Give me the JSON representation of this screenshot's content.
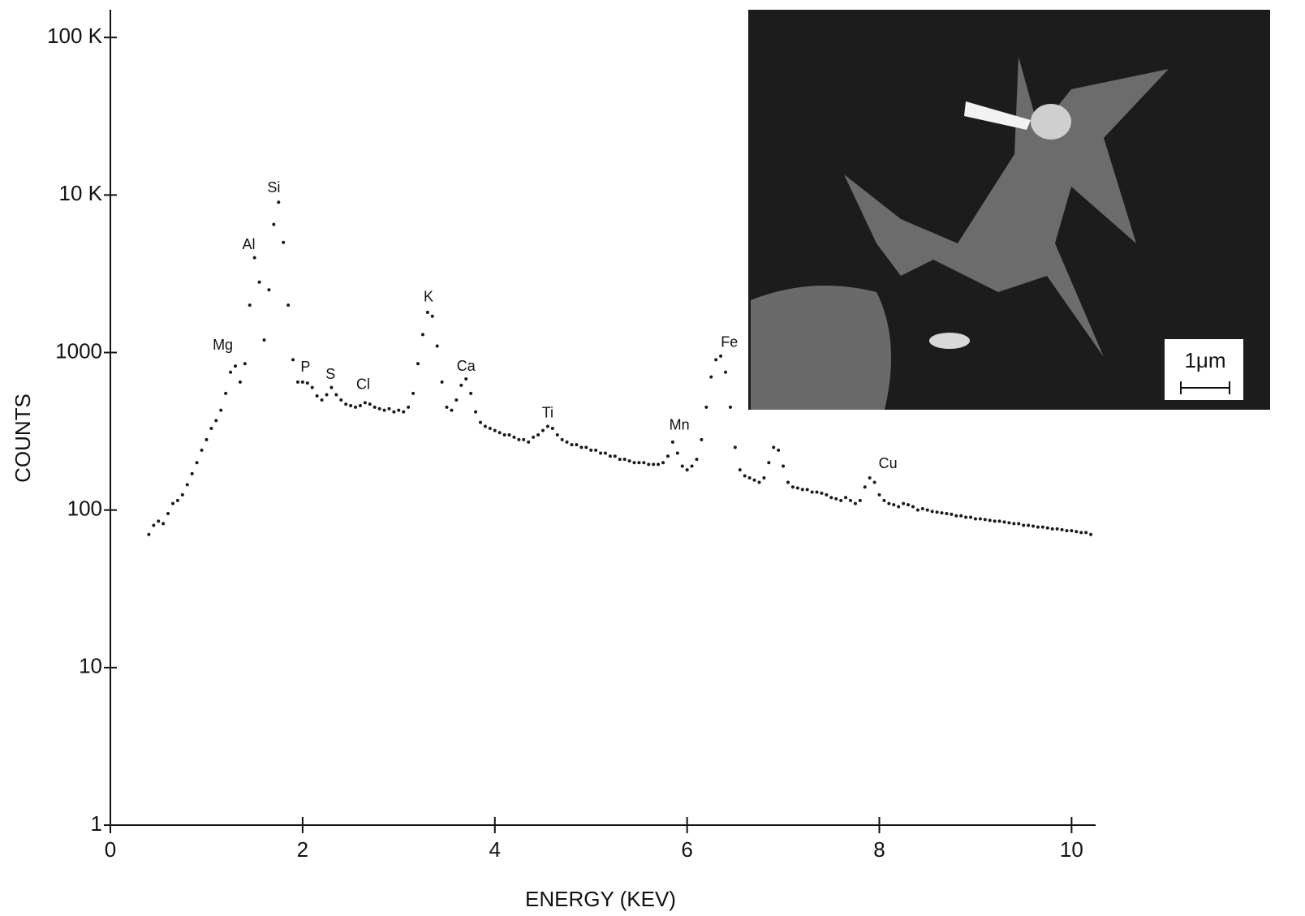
{
  "chart_data": {
    "type": "scatter",
    "xlabel": "ENERGY (KEV)",
    "ylabel": "COUNTS",
    "xlim": [
      0,
      10.25
    ],
    "ylim": [
      1,
      150000
    ],
    "yscale": "log",
    "xticks": [
      0,
      2,
      4,
      6,
      8,
      10
    ],
    "yticks": [
      1,
      10,
      100,
      1000,
      {
        "value": 10000,
        "label": "10 K"
      },
      {
        "value": 100000,
        "label": "100 K"
      }
    ],
    "x": [
      0.4,
      0.45,
      0.5,
      0.55,
      0.6,
      0.65,
      0.7,
      0.75,
      0.8,
      0.85,
      0.9,
      0.95,
      1.0,
      1.05,
      1.1,
      1.15,
      1.2,
      1.25,
      1.3,
      1.35,
      1.4,
      1.45,
      1.5,
      1.55,
      1.6,
      1.65,
      1.7,
      1.75,
      1.8,
      1.85,
      1.9,
      1.95,
      2.0,
      2.05,
      2.1,
      2.15,
      2.2,
      2.25,
      2.3,
      2.35,
      2.4,
      2.45,
      2.5,
      2.55,
      2.6,
      2.65,
      2.7,
      2.75,
      2.8,
      2.85,
      2.9,
      2.95,
      3.0,
      3.05,
      3.1,
      3.15,
      3.2,
      3.25,
      3.3,
      3.35,
      3.4,
      3.45,
      3.5,
      3.55,
      3.6,
      3.65,
      3.7,
      3.75,
      3.8,
      3.85,
      3.9,
      3.95,
      4.0,
      4.05,
      4.1,
      4.15,
      4.2,
      4.25,
      4.3,
      4.35,
      4.4,
      4.45,
      4.5,
      4.55,
      4.6,
      4.65,
      4.7,
      4.75,
      4.8,
      4.85,
      4.9,
      4.95,
      5.0,
      5.05,
      5.1,
      5.15,
      5.2,
      5.25,
      5.3,
      5.35,
      5.4,
      5.45,
      5.5,
      5.55,
      5.6,
      5.65,
      5.7,
      5.75,
      5.8,
      5.85,
      5.9,
      5.95,
      6.0,
      6.05,
      6.1,
      6.15,
      6.2,
      6.25,
      6.3,
      6.35,
      6.4,
      6.45,
      6.5,
      6.55,
      6.6,
      6.65,
      6.7,
      6.75,
      6.8,
      6.85,
      6.9,
      6.95,
      7.0,
      7.05,
      7.1,
      7.15,
      7.2,
      7.25,
      7.3,
      7.35,
      7.4,
      7.45,
      7.5,
      7.55,
      7.6,
      7.65,
      7.7,
      7.75,
      7.8,
      7.85,
      7.9,
      7.95,
      8.0,
      8.05,
      8.1,
      8.15,
      8.2,
      8.25,
      8.3,
      8.35,
      8.4,
      8.45,
      8.5,
      8.55,
      8.6,
      8.65,
      8.7,
      8.75,
      8.8,
      8.85,
      8.9,
      8.95,
      9.0,
      9.05,
      9.1,
      9.15,
      9.2,
      9.25,
      9.3,
      9.35,
      9.4,
      9.45,
      9.5,
      9.55,
      9.6,
      9.65,
      9.7,
      9.75,
      9.8,
      9.85,
      9.9,
      9.95,
      10.0,
      10.05,
      10.1,
      10.15,
      10.2
    ],
    "series": [
      {
        "color": "#1a1a1a",
        "values": [
          70,
          80,
          85,
          82,
          95,
          110,
          115,
          125,
          145,
          170,
          200,
          240,
          280,
          330,
          370,
          430,
          550,
          750,
          820,
          650,
          850,
          2000,
          4000,
          2800,
          1200,
          2500,
          6500,
          9000,
          5000,
          2000,
          900,
          650,
          650,
          640,
          600,
          530,
          500,
          540,
          600,
          540,
          500,
          470,
          460,
          450,
          460,
          480,
          470,
          450,
          440,
          430,
          440,
          420,
          430,
          420,
          450,
          550,
          850,
          1300,
          1800,
          1700,
          1100,
          650,
          450,
          430,
          500,
          620,
          680,
          550,
          420,
          360,
          340,
          330,
          320,
          310,
          300,
          300,
          290,
          280,
          280,
          270,
          290,
          300,
          320,
          340,
          330,
          300,
          280,
          270,
          260,
          260,
          250,
          250,
          240,
          240,
          230,
          230,
          220,
          220,
          210,
          210,
          205,
          200,
          200,
          200,
          195,
          195,
          195,
          200,
          220,
          270,
          230,
          190,
          180,
          190,
          210,
          280,
          450,
          700,
          900,
          950,
          750,
          450,
          250,
          180,
          165,
          160,
          155,
          150,
          160,
          200,
          250,
          240,
          190,
          150,
          140,
          138,
          135,
          135,
          130,
          130,
          128,
          125,
          120,
          118,
          115,
          120,
          115,
          110,
          115,
          140,
          160,
          150,
          125,
          115,
          110,
          108,
          105,
          110,
          108,
          105,
          100,
          102,
          100,
          98,
          97,
          96,
          95,
          94,
          92,
          92,
          90,
          90,
          88,
          88,
          87,
          86,
          85,
          85,
          84,
          83,
          82,
          82,
          80,
          80,
          79,
          78,
          78,
          77,
          76,
          76,
          75,
          74,
          74,
          73,
          72,
          72,
          70
        ]
      }
    ],
    "annotations": [
      {
        "text": "Mg",
        "x": 1.17,
        "y": 1100
      },
      {
        "text": "Al",
        "x": 1.44,
        "y": 4800
      },
      {
        "text": "Si",
        "x": 1.7,
        "y": 11000
      },
      {
        "text": "P",
        "x": 2.03,
        "y": 800
      },
      {
        "text": "S",
        "x": 2.29,
        "y": 720
      },
      {
        "text": "Cl",
        "x": 2.63,
        "y": 620
      },
      {
        "text": "K",
        "x": 3.31,
        "y": 2240
      },
      {
        "text": "Ca",
        "x": 3.7,
        "y": 810
      },
      {
        "text": "Ti",
        "x": 4.55,
        "y": 410
      },
      {
        "text": "Mn",
        "x": 5.92,
        "y": 343
      },
      {
        "text": "Fe",
        "x": 6.44,
        "y": 1150
      },
      {
        "text": "Cu",
        "x": 8.09,
        "y": 195
      }
    ],
    "inset": {
      "scale_label": "1μm"
    }
  }
}
